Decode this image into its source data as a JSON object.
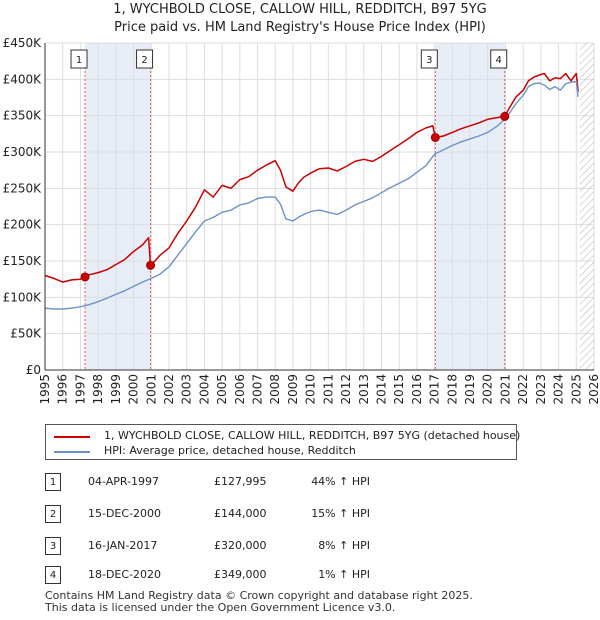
{
  "title_line1": "1, WYCHBOLD CLOSE, CALLOW HILL, REDDITCH, B97 5YG",
  "title_line2": "Price paid vs. HM Land Registry's House Price Index (HPI)",
  "colors": {
    "property": "#cc0000",
    "hpi": "#6b93c9",
    "shade": "#dde6f2",
    "grid": "#dddddd"
  },
  "legend": {
    "property_label": "1, WYCHBOLD CLOSE, CALLOW HILL, REDDITCH, B97 5YG (detached house)",
    "hpi_label": "HPI: Average price, detached house, Redditch"
  },
  "transactions": [
    {
      "num": "1",
      "date": "04-APR-1997",
      "price": "£127,995",
      "hpi": "44% ↑ HPI"
    },
    {
      "num": "2",
      "date": "15-DEC-2000",
      "price": "£144,000",
      "hpi": "15% ↑ HPI"
    },
    {
      "num": "3",
      "date": "16-JAN-2017",
      "price": "£320,000",
      "hpi": "8% ↑ HPI"
    },
    {
      "num": "4",
      "date": "18-DEC-2020",
      "price": "£349,000",
      "hpi": "1% ↑ HPI"
    }
  ],
  "footer_line1": "Contains HM Land Registry data © Crown copyright and database right 2025.",
  "footer_line2": "This data is licensed under the Open Government Licence v3.0.",
  "chart_data": {
    "type": "line",
    "title": "1, WYCHBOLD CLOSE, CALLOW HILL, REDDITCH, B97 5YG — Price paid vs. HM Land Registry's House Price Index (HPI)",
    "xlabel": "",
    "ylabel": "",
    "xlim": [
      1995,
      2026
    ],
    "ylim": [
      0,
      450000
    ],
    "x_ticks": [
      1995,
      1996,
      1997,
      1998,
      1999,
      2000,
      2001,
      2002,
      2003,
      2004,
      2005,
      2006,
      2007,
      2008,
      2009,
      2010,
      2011,
      2012,
      2013,
      2014,
      2015,
      2016,
      2017,
      2018,
      2019,
      2020,
      2021,
      2022,
      2023,
      2024,
      2025,
      2026
    ],
    "y_ticks": [
      {
        "value": 0,
        "label": "£0"
      },
      {
        "value": 50000,
        "label": "£50K"
      },
      {
        "value": 100000,
        "label": "£100K"
      },
      {
        "value": 150000,
        "label": "£150K"
      },
      {
        "value": 200000,
        "label": "£200K"
      },
      {
        "value": 250000,
        "label": "£250K"
      },
      {
        "value": 300000,
        "label": "£300K"
      },
      {
        "value": 350000,
        "label": "£350K"
      },
      {
        "value": 400000,
        "label": "£400K"
      },
      {
        "value": 450000,
        "label": "£450K"
      }
    ],
    "grid": true,
    "future_hatch_start": 2025.2,
    "series": [
      {
        "name": "1, WYCHBOLD CLOSE, CALLOW HILL, REDDITCH, B97 5YG (detached house)",
        "color": "#cc0000",
        "x": [
          1995.0,
          1995.5,
          1996.0,
          1996.5,
          1997.0,
          1997.26,
          1997.5,
          1998.0,
          1998.5,
          1999.0,
          1999.5,
          2000.0,
          2000.5,
          2000.85,
          2000.96,
          2001.2,
          2001.5,
          2002.0,
          2002.5,
          2003.0,
          2003.5,
          2004.0,
          2004.5,
          2005.0,
          2005.5,
          2006.0,
          2006.5,
          2007.0,
          2007.5,
          2008.0,
          2008.3,
          2008.6,
          2009.0,
          2009.3,
          2009.6,
          2010.0,
          2010.5,
          2011.0,
          2011.5,
          2012.0,
          2012.5,
          2013.0,
          2013.5,
          2014.0,
          2014.5,
          2015.0,
          2015.5,
          2016.0,
          2016.5,
          2016.9,
          2017.04,
          2017.5,
          2018.0,
          2018.5,
          2019.0,
          2019.5,
          2020.0,
          2020.5,
          2020.96,
          2021.3,
          2021.6,
          2022.0,
          2022.3,
          2022.6,
          2022.9,
          2023.2,
          2023.5,
          2023.8,
          2024.1,
          2024.4,
          2024.7,
          2025.0,
          2025.1
        ],
        "values": [
          130000,
          126000,
          121000,
          124000,
          125000,
          127995,
          131000,
          134000,
          138000,
          145000,
          152000,
          163000,
          172000,
          182000,
          144000,
          150000,
          158000,
          168000,
          188000,
          205000,
          224000,
          248000,
          238000,
          254000,
          250000,
          262000,
          266000,
          275000,
          282000,
          288000,
          275000,
          252000,
          246000,
          257000,
          265000,
          271000,
          277000,
          278000,
          274000,
          280000,
          287000,
          290000,
          287000,
          294000,
          302000,
          310000,
          318000,
          327000,
          333000,
          336000,
          320000,
          322000,
          327000,
          332000,
          336000,
          340000,
          345000,
          347000,
          349000,
          364000,
          376000,
          385000,
          398000,
          403000,
          406000,
          408000,
          398000,
          402000,
          401000,
          408000,
          398000,
          408000,
          383000
        ]
      },
      {
        "name": "HPI: Average price, detached house, Redditch",
        "color": "#6b93c9",
        "x": [
          1995.0,
          1995.5,
          1996.0,
          1996.5,
          1997.0,
          1997.5,
          1998.0,
          1998.5,
          1999.0,
          1999.5,
          2000.0,
          2000.5,
          2001.0,
          2001.5,
          2002.0,
          2002.5,
          2003.0,
          2003.5,
          2004.0,
          2004.5,
          2005.0,
          2005.5,
          2006.0,
          2006.5,
          2007.0,
          2007.5,
          2008.0,
          2008.3,
          2008.6,
          2009.0,
          2009.3,
          2009.6,
          2010.0,
          2010.5,
          2011.0,
          2011.5,
          2012.0,
          2012.5,
          2013.0,
          2013.5,
          2014.0,
          2014.5,
          2015.0,
          2015.5,
          2016.0,
          2016.5,
          2017.0,
          2017.5,
          2018.0,
          2018.5,
          2019.0,
          2019.5,
          2020.0,
          2020.5,
          2021.0,
          2021.3,
          2021.6,
          2022.0,
          2022.3,
          2022.6,
          2022.9,
          2023.2,
          2023.5,
          2023.8,
          2024.1,
          2024.4,
          2024.7,
          2025.0,
          2025.1
        ],
        "values": [
          85000,
          84000,
          84000,
          85000,
          87000,
          90000,
          94000,
          99000,
          104000,
          109000,
          115000,
          121000,
          126000,
          132000,
          142000,
          158000,
          174000,
          190000,
          205000,
          210000,
          217000,
          220000,
          227000,
          230000,
          236000,
          238000,
          238000,
          228000,
          208000,
          205000,
          210000,
          214000,
          218000,
          220000,
          217000,
          214000,
          220000,
          227000,
          232000,
          237000,
          244000,
          251000,
          257000,
          263000,
          272000,
          281000,
          297000,
          303000,
          309000,
          314000,
          318000,
          322000,
          327000,
          335000,
          346000,
          356000,
          367000,
          378000,
          390000,
          394000,
          395000,
          392000,
          386000,
          390000,
          385000,
          394000,
          396000,
          397000,
          376000
        ]
      }
    ],
    "sales": [
      {
        "label": "1",
        "year": 1997.26,
        "price": 127995
      },
      {
        "label": "2",
        "year": 2000.96,
        "price": 144000
      },
      {
        "label": "3",
        "year": 2017.04,
        "price": 320000
      },
      {
        "label": "4",
        "year": 2020.96,
        "price": 349000
      }
    ]
  }
}
